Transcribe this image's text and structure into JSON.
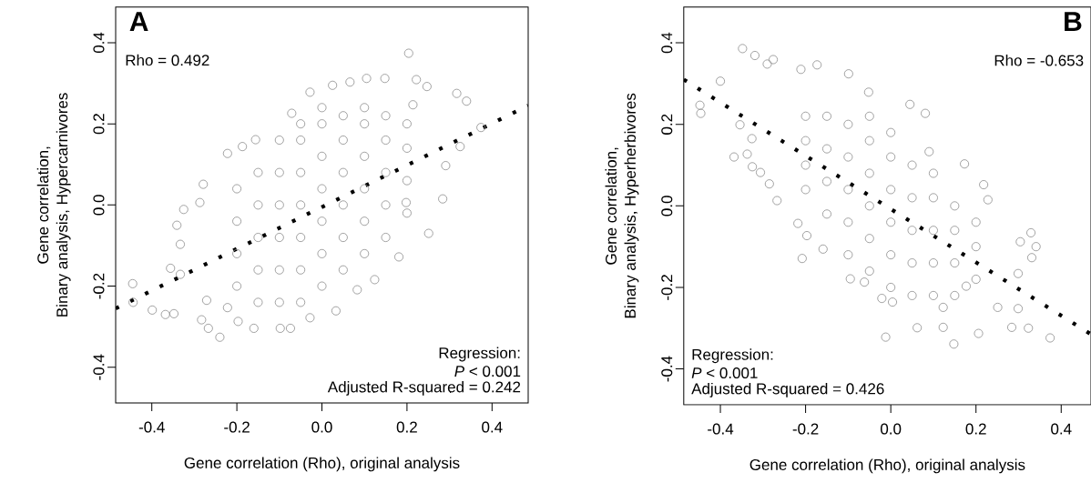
{
  "chart_data": [
    {
      "type": "scatter",
      "xlabel": "Gene correlation (Rho), original analysis",
      "ylabel": "Gene correlation,\nBinary analysis, Hypercarnivores",
      "annotations": [
        "A",
        "Rho = 0.492",
        "Regression:",
        "*P* < 0.001",
        "Adjusted R-squared = 0.242"
      ],
      "xlim": [
        -0.485,
        0.485
      ],
      "ylim": [
        -0.488,
        0.488
      ],
      "xticks": [
        {
          "value": -0.4,
          "label": "-0.4"
        },
        {
          "value": -0.2,
          "label": "-0.2"
        },
        {
          "value": 0,
          "label": "0.0"
        },
        {
          "value": 0.2,
          "label": "0.2"
        },
        {
          "value": 0.4,
          "label": "0.4"
        }
      ],
      "yticks": [
        {
          "value": -0.4,
          "label": "-0.4"
        },
        {
          "value": -0.2,
          "label": "-0.2"
        },
        {
          "value": 0,
          "label": "0.0"
        },
        {
          "value": 0.2,
          "label": "0.2"
        },
        {
          "value": 0.4,
          "label": "0.4"
        }
      ],
      "series": [
        {
          "color": "#8c8c8c",
          "marker": "circle",
          "x": [
            -0.445,
            -0.444,
            -0.399,
            -0.368,
            -0.348,
            -0.356,
            -0.341,
            -0.325,
            -0.279,
            -0.287,
            -0.283,
            -0.267,
            -0.24,
            -0.222,
            -0.187,
            -0.156,
            -0.071,
            -0.028,
            0.025,
            0.066,
            0.105,
            0.148,
            0.204,
            0.222,
            0.247,
            0.317,
            0.34,
            0.374,
            0.325,
            0.291,
            0.284,
            0.251,
            0.181,
            0.124,
            0.083,
            0.033,
            -0.028,
            -0.074,
            -0.098,
            -0.16,
            -0.197,
            -0.222,
            -0.271,
            -0.333,
            -0.333,
            0.198,
            0.214,
            -0.2,
            -0.2,
            -0.2,
            -0.2,
            -0.15,
            -0.15,
            -0.15,
            -0.15,
            -0.15,
            -0.1,
            -0.1,
            -0.1,
            -0.1,
            -0.1,
            -0.1,
            -0.05,
            -0.05,
            -0.05,
            -0.05,
            -0.05,
            -0.05,
            -0.05,
            0,
            0,
            0,
            0,
            0,
            0,
            0,
            0.05,
            0.05,
            0.05,
            0.05,
            0.05,
            0.05,
            0.1,
            0.1,
            0.1,
            0.1,
            0.1,
            0.1,
            0.15,
            0.15,
            0.15,
            0.15,
            0.15,
            0.2,
            0.2,
            0.2,
            0.2
          ],
          "values": [
            -0.194,
            -0.24,
            -0.259,
            -0.27,
            -0.268,
            -0.156,
            -0.05,
            -0.011,
            0.051,
            0.006,
            -0.283,
            -0.304,
            -0.326,
            0.127,
            0.144,
            0.161,
            0.226,
            0.278,
            0.295,
            0.303,
            0.312,
            0.312,
            0.374,
            0.309,
            0.292,
            0.275,
            0.256,
            0.191,
            0.144,
            0.097,
            0.015,
            -0.07,
            -0.128,
            -0.184,
            -0.209,
            -0.261,
            -0.278,
            -0.304,
            -0.304,
            -0.304,
            -0.287,
            -0.253,
            -0.235,
            -0.171,
            -0.097,
            0.006,
            0.247,
            -0.2,
            -0.12,
            -0.04,
            0.04,
            -0.24,
            -0.16,
            -0.08,
            0.0,
            0.08,
            -0.24,
            -0.16,
            -0.08,
            0.0,
            0.08,
            0.16,
            -0.24,
            -0.16,
            -0.08,
            0.0,
            0.08,
            0.16,
            0.2,
            -0.2,
            -0.12,
            -0.04,
            0.04,
            0.12,
            0.2,
            0.24,
            -0.16,
            -0.08,
            0.0,
            0.08,
            0.16,
            0.22,
            -0.12,
            -0.04,
            0.04,
            0.12,
            0.2,
            0.24,
            -0.08,
            0.0,
            0.08,
            0.16,
            0.22,
            -0.02,
            0.06,
            0.14,
            0.2
          ]
        },
        {
          "type": "line",
          "color": "#000000",
          "marker": "none",
          "line_style": "dotted",
          "x": [
            -0.485,
            0.485
          ],
          "values": [
            -0.255,
            0.245
          ]
        }
      ]
    },
    {
      "type": "scatter",
      "xlabel": "Gene correlation (Rho), original analysis",
      "ylabel": "Gene correlation,\nBinary analysis, Hyperherbivores",
      "annotations": [
        "B",
        "Rho = -0.653",
        "Regression:",
        "*P* < 0.001",
        "Adjusted R-squared = 0.426"
      ],
      "xlim": [
        -0.486,
        0.47
      ],
      "ylim": [
        -0.488,
        0.488
      ],
      "xticks": [
        {
          "value": -0.4,
          "label": "-0.4"
        },
        {
          "value": -0.2,
          "label": "-0.2"
        },
        {
          "value": 0,
          "label": "0.0"
        },
        {
          "value": 0.2,
          "label": "0.2"
        },
        {
          "value": 0.4,
          "label": "0.4"
        }
      ],
      "yticks": [
        {
          "value": -0.4,
          "label": "-0.4"
        },
        {
          "value": -0.2,
          "label": "-0.2"
        },
        {
          "value": 0,
          "label": "0.0"
        },
        {
          "value": 0.2,
          "label": "0.2"
        },
        {
          "value": 0.4,
          "label": "0.4"
        }
      ],
      "series": [
        {
          "color": "#8c8c8c",
          "marker": "circle",
          "x": [
            -0.448,
            -0.446,
            -0.4,
            -0.348,
            -0.319,
            -0.29,
            -0.276,
            -0.211,
            -0.173,
            -0.099,
            -0.052,
            0.045,
            0.081,
            0.09,
            0.173,
            0.218,
            0.228,
            0.329,
            0.341,
            0.304,
            0.331,
            0.299,
            0.299,
            0.323,
            0.374,
            0.284,
            0.206,
            0.148,
            0.123,
            0.062,
            -0.012,
            0.004,
            -0.021,
            -0.095,
            -0.062,
            -0.159,
            -0.208,
            -0.197,
            -0.218,
            -0.267,
            -0.285,
            -0.306,
            -0.325,
            -0.368,
            -0.337,
            -0.354,
            -0.326,
            0.177,
            0.251,
            0.123,
            -0.2,
            -0.2,
            -0.2,
            -0.2,
            -0.15,
            -0.15,
            -0.15,
            -0.15,
            -0.1,
            -0.1,
            -0.1,
            -0.1,
            -0.1,
            -0.05,
            -0.05,
            -0.05,
            -0.05,
            -0.05,
            -0.05,
            0,
            0,
            0,
            0,
            0,
            0,
            0.05,
            0.05,
            0.05,
            0.05,
            0.05,
            0.1,
            0.1,
            0.1,
            0.1,
            0.1,
            0.15,
            0.15,
            0.15,
            0.15,
            0.2,
            0.2,
            0.2
          ],
          "values": [
            0.247,
            0.227,
            0.306,
            0.386,
            0.369,
            0.348,
            0.359,
            0.335,
            0.346,
            0.324,
            0.279,
            0.249,
            0.227,
            0.133,
            0.103,
            0.052,
            0.015,
            -0.066,
            -0.1,
            -0.088,
            -0.127,
            -0.166,
            -0.252,
            -0.3,
            -0.324,
            -0.298,
            -0.313,
            -0.339,
            -0.298,
            -0.299,
            -0.322,
            -0.236,
            -0.227,
            -0.179,
            -0.187,
            -0.106,
            -0.129,
            -0.073,
            -0.043,
            0.013,
            0.054,
            0.082,
            0.096,
            0.12,
            0.127,
            0.199,
            0.165,
            -0.197,
            -0.249,
            -0.249,
            0.04,
            0.1,
            0.16,
            0.22,
            -0.02,
            0.06,
            0.14,
            0.22,
            -0.12,
            -0.04,
            0.04,
            0.12,
            0.2,
            -0.16,
            -0.08,
            0.0,
            0.08,
            0.16,
            0.22,
            -0.2,
            -0.12,
            -0.04,
            0.04,
            0.12,
            0.18,
            -0.22,
            -0.14,
            -0.06,
            0.02,
            0.1,
            -0.22,
            -0.14,
            -0.06,
            0.02,
            0.08,
            -0.22,
            -0.14,
            -0.06,
            0.0,
            -0.18,
            -0.1,
            -0.04
          ]
        },
        {
          "type": "line",
          "color": "#000000",
          "marker": "none",
          "line_style": "dotted",
          "x": [
            -0.486,
            0.47
          ],
          "values": [
            0.31,
            -0.315
          ]
        }
      ]
    }
  ]
}
